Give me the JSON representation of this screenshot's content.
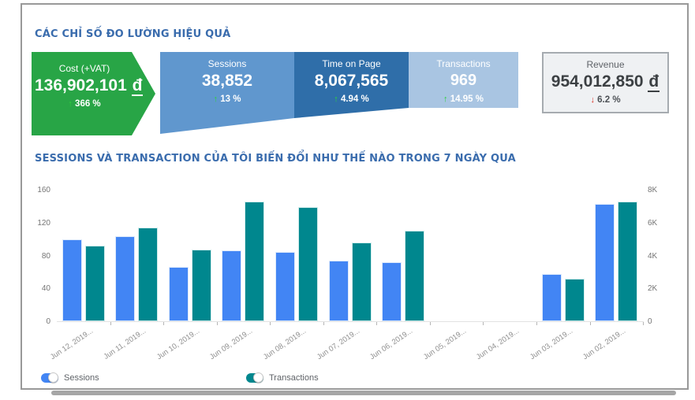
{
  "page": {
    "title1": "CÁC CHỈ SỐ ĐO LƯỜNG HIỆU QUẢ",
    "title2": "SESSIONS VÀ TRANSACTION CỦA TÔI BIẾN ĐỔI NHƯ THẾ NÀO TRONG 7 NGÀY QUA"
  },
  "colors": {
    "title_blue": "#3a6cad",
    "cost_green": "#28a546",
    "sessions_blue": "#6097ce",
    "time_on_page_blue": "#2f6ea9",
    "transactions_blue": "#a9c5e2",
    "bar_sessions": "#4285f4",
    "bar_transactions": "#00878e",
    "delta_up_green": "#2fd23c",
    "delta_down_red": "#d93025"
  },
  "kpis": {
    "cost": {
      "label": "Cost (+VAT)",
      "value": "136,902,101",
      "currency": "đ",
      "delta": "366 %",
      "direction": "up"
    },
    "sessions": {
      "label": "Sessions",
      "value": "38,852",
      "delta": "13 %",
      "direction": "up"
    },
    "time_on_page": {
      "label": "Time on Page",
      "value": "8,067,565",
      "delta": "4.94 %",
      "direction": "up"
    },
    "transactions": {
      "label": "Transactions",
      "value": "969",
      "delta": "14.95 %",
      "direction": "up"
    },
    "revenue": {
      "label": "Revenue",
      "value": "954,012,850",
      "currency": "đ",
      "delta": "6.2 %",
      "direction": "down"
    }
  },
  "chart_data": {
    "type": "bar",
    "title": "SESSIONS VÀ TRANSACTION CỦA TÔI BIẾN ĐỔI NHƯ THẾ NÀO TRONG 7 NGÀY QUA",
    "categories": [
      "Jun 12, 2019...",
      "Jun 11, 2019...",
      "Jun 10, 2019...",
      "Jun 09, 2019...",
      "Jun 08, 2019...",
      "Jun 07, 2019...",
      "Jun 06, 2019...",
      "Jun 05, 2019...",
      "Jun 04, 2019...",
      "Jun 03, 2019...",
      "Jun 02, 2019..."
    ],
    "series": [
      {
        "name": "Sessions",
        "axis": "right",
        "color": "#4285f4",
        "values": [
          5000,
          5200,
          3300,
          4300,
          4200,
          3700,
          3600,
          0,
          0,
          2900,
          7150
        ]
      },
      {
        "name": "Transactions",
        "axis": "left",
        "color": "#00878e",
        "values": [
          92,
          114,
          87,
          146,
          139,
          96,
          110,
          0,
          0,
          52,
          146
        ]
      }
    ],
    "left_axis": {
      "ticks": [
        "160",
        "120",
        "80",
        "40",
        "0"
      ],
      "min": 0,
      "max": 160
    },
    "right_axis": {
      "ticks": [
        "8K",
        "6K",
        "4K",
        "2K",
        "0"
      ],
      "min": 0,
      "max": 8000
    },
    "grid": false,
    "legend_position": "bottom",
    "legend": [
      {
        "label": "Sessions",
        "color": "#4285f4",
        "state": "on"
      },
      {
        "label": "Transactions",
        "color": "#00878e",
        "state": "on"
      }
    ]
  }
}
